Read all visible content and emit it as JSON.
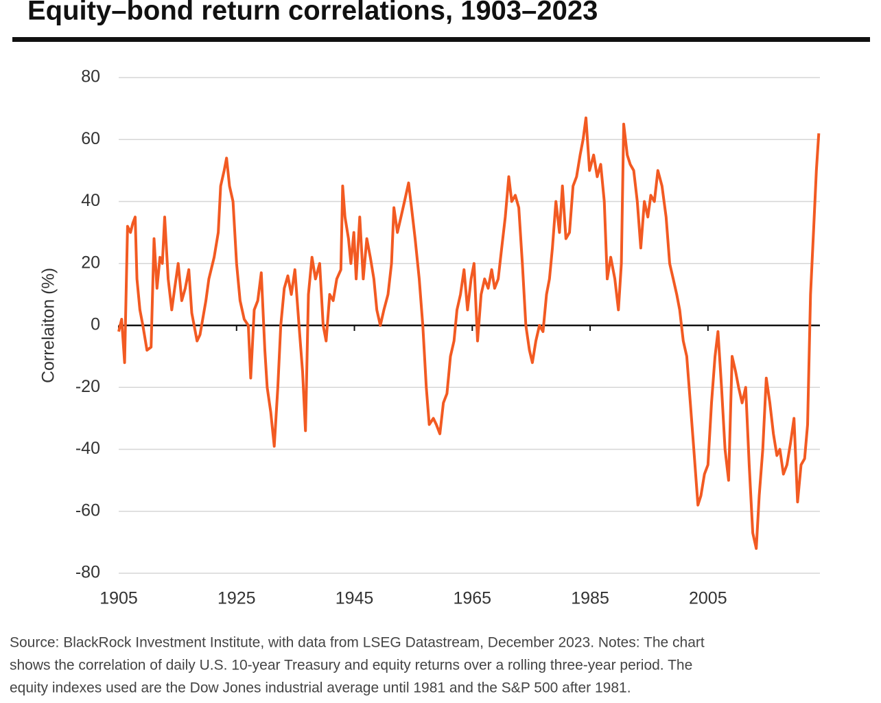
{
  "chart_data": {
    "type": "line",
    "title": "Equity–bond return correlations, 1903–2023",
    "y_label": "Correlaiton (%)",
    "note": [
      "Source: BlackRock Investment Institute, with data from LSEG Datastream, December 2023. Notes: The chart",
      "shows the correlation of daily U.S. 10-year Treasury and equity returns over a rolling three-year period. The",
      "equity indexes used are the Dow Jones industrial average until 1981 and the S&P 500 after 1981."
    ],
    "xlim": [
      1905,
      2024
    ],
    "xticks": [
      1905,
      1925,
      1945,
      1965,
      1985,
      2005
    ],
    "ylim": [
      -80,
      80
    ],
    "yticks": [
      -80,
      -60,
      -40,
      -20,
      0,
      20,
      40,
      60,
      80
    ],
    "grid": true,
    "color": "#f25a22",
    "x": [
      1905.0,
      1905.5,
      1906.0,
      1906.5,
      1907.0,
      1907.4,
      1907.8,
      1908.1,
      1908.6,
      1909.1,
      1909.8,
      1910.5,
      1911.0,
      1911.5,
      1912.0,
      1912.4,
      1912.8,
      1913.4,
      1914.0,
      1914.5,
      1915.1,
      1915.7,
      1916.3,
      1916.9,
      1917.4,
      1918.3,
      1918.8,
      1919.8,
      1920.3,
      1921.2,
      1921.9,
      1922.3,
      1922.9,
      1923.3,
      1923.8,
      1924.4,
      1925.0,
      1925.6,
      1926.3,
      1927.0,
      1927.4,
      1928.0,
      1928.6,
      1929.2,
      1929.8,
      1930.2,
      1930.8,
      1931.4,
      1932.0,
      1932.5,
      1933.1,
      1933.7,
      1934.3,
      1934.9,
      1935.6,
      1936.2,
      1936.7,
      1937.2,
      1937.8,
      1938.4,
      1939.1,
      1939.7,
      1940.2,
      1940.8,
      1941.4,
      1942.0,
      1942.7,
      1943.0,
      1943.4,
      1944.0,
      1944.4,
      1944.9,
      1945.3,
      1945.9,
      1946.5,
      1947.1,
      1947.7,
      1948.3,
      1948.8,
      1949.4,
      1950.0,
      1950.7,
      1951.3,
      1951.7,
      1952.3,
      1952.9,
      1953.5,
      1954.2,
      1954.7,
      1955.3,
      1956.0,
      1956.6,
      1957.2,
      1957.7,
      1958.4,
      1958.9,
      1959.5,
      1960.1,
      1960.7,
      1961.3,
      1961.9,
      1962.4,
      1963.0,
      1963.6,
      1964.2,
      1964.8,
      1965.3,
      1965.9,
      1966.5,
      1967.1,
      1967.7,
      1968.3,
      1968.8,
      1969.4,
      1970.0,
      1970.6,
      1971.2,
      1971.7,
      1972.3,
      1972.9,
      1973.5,
      1974.1,
      1974.7,
      1975.2,
      1975.8,
      1976.4,
      1977.0,
      1977.6,
      1978.1,
      1978.6,
      1979.2,
      1979.8,
      1980.3,
      1980.9,
      1981.5,
      1982.1,
      1982.7,
      1983.3,
      1983.8,
      1984.3,
      1984.9,
      1985.6,
      1986.2,
      1986.8,
      1987.4,
      1987.9,
      1988.5,
      1989.2,
      1989.8,
      1990.3,
      1990.7,
      1991.3,
      1991.8,
      1992.4,
      1993.0,
      1993.6,
      1994.2,
      1994.8,
      1995.3,
      1995.9,
      1996.5,
      1997.2,
      1997.9,
      1998.5,
      1999.1,
      1999.7,
      2000.2,
      2000.8,
      2001.4,
      2002.0,
      2002.6,
      2003.3,
      2003.8,
      2004.4,
      2005.0,
      2005.6,
      2006.2,
      2006.7,
      2007.3,
      2007.9,
      2008.5,
      2009.1,
      2009.7,
      2010.2,
      2010.8,
      2011.4,
      2012.0,
      2012.6,
      2013.2,
      2013.7,
      2014.3,
      2014.9,
      2015.5,
      2016.1,
      2016.7,
      2017.2,
      2017.8,
      2018.4,
      2019.0,
      2019.6,
      2020.2,
      2020.8,
      2021.4,
      2021.9,
      2022.4,
      2022.9,
      2023.4,
      2023.8
    ],
    "values": [
      -2,
      2,
      -12,
      32,
      30,
      33,
      35,
      15,
      5,
      0,
      -8,
      -7,
      28,
      12,
      22,
      20,
      35,
      15,
      5,
      12,
      20,
      8,
      12,
      18,
      4,
      -5,
      -3,
      8,
      15,
      22,
      30,
      45,
      50,
      54,
      45,
      40,
      20,
      8,
      2,
      0,
      -17,
      5,
      8,
      17,
      -8,
      -20,
      -28,
      -39,
      -20,
      0,
      12,
      16,
      10,
      18,
      0,
      -15,
      -34,
      10,
      22,
      15,
      20,
      0,
      -5,
      10,
      8,
      15,
      18,
      45,
      35,
      28,
      20,
      30,
      15,
      35,
      15,
      28,
      22,
      15,
      5,
      0,
      5,
      10,
      20,
      38,
      30,
      35,
      40,
      46,
      38,
      28,
      15,
      0,
      -20,
      -32,
      -30,
      -32,
      -35,
      -25,
      -22,
      -10,
      -5,
      5,
      10,
      18,
      5,
      15,
      20,
      -5,
      10,
      15,
      12,
      18,
      12,
      15,
      25,
      35,
      48,
      40,
      42,
      38,
      20,
      0,
      -8,
      -12,
      -5,
      0,
      -2,
      10,
      15,
      25,
      40,
      30,
      45,
      28,
      30,
      45,
      48,
      55,
      60,
      67,
      50,
      55,
      48,
      52,
      40,
      15,
      22,
      15,
      5,
      20,
      65,
      55,
      52,
      50,
      40,
      25,
      40,
      35,
      42,
      40,
      50,
      45,
      35,
      20,
      15,
      10,
      5,
      -5,
      -10,
      -25,
      -40,
      -58,
      -55,
      -48,
      -45,
      -25,
      -10,
      -2,
      -20,
      -40,
      -50,
      -10,
      -15,
      -20,
      -25,
      -20,
      -45,
      -67,
      -72,
      -55,
      -40,
      -17,
      -25,
      -35,
      -42,
      -40,
      -48,
      -45,
      -38,
      -30,
      -57,
      -45,
      -43,
      -32,
      10,
      30,
      50,
      62
    ]
  }
}
